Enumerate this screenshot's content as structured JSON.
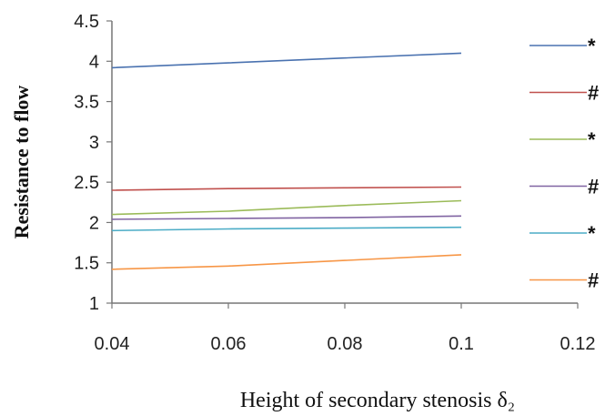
{
  "chart_data": {
    "type": "line",
    "title": "",
    "xlabel": "Height of secondary stenosis δ₂",
    "ylabel": "Resistance to flow",
    "xlim": [
      0.04,
      0.12
    ],
    "ylim": [
      1,
      4.5
    ],
    "x_ticks": [
      "0.04",
      "0.06",
      "0.08",
      "0.1",
      "0.12"
    ],
    "y_ticks": [
      "1",
      "1.5",
      "2",
      "2.5",
      "3",
      "3.5",
      "4",
      "4.5"
    ],
    "grid": false,
    "legend_position": "right",
    "series": [
      {
        "name": "*",
        "color": "#4a72b0",
        "x": [
          0.04,
          0.06,
          0.08,
          0.1
        ],
        "values": [
          3.92,
          3.98,
          4.04,
          4.1
        ]
      },
      {
        "name": "#",
        "color": "#c0504d",
        "x": [
          0.04,
          0.06,
          0.08,
          0.1
        ],
        "values": [
          2.4,
          2.42,
          2.43,
          2.44
        ]
      },
      {
        "name": "*",
        "color": "#9bbb59",
        "x": [
          0.04,
          0.06,
          0.08,
          0.1
        ],
        "values": [
          2.1,
          2.14,
          2.21,
          2.27
        ]
      },
      {
        "name": "#",
        "color": "#8064a2",
        "x": [
          0.04,
          0.06,
          0.08,
          0.1
        ],
        "values": [
          2.04,
          2.05,
          2.06,
          2.08
        ]
      },
      {
        "name": "*",
        "color": "#4bacc6",
        "x": [
          0.04,
          0.06,
          0.08,
          0.1
        ],
        "values": [
          1.9,
          1.92,
          1.93,
          1.94
        ]
      },
      {
        "name": "#",
        "color": "#f79646",
        "x": [
          0.04,
          0.06,
          0.08,
          0.1
        ],
        "values": [
          1.42,
          1.46,
          1.53,
          1.6
        ]
      }
    ]
  }
}
